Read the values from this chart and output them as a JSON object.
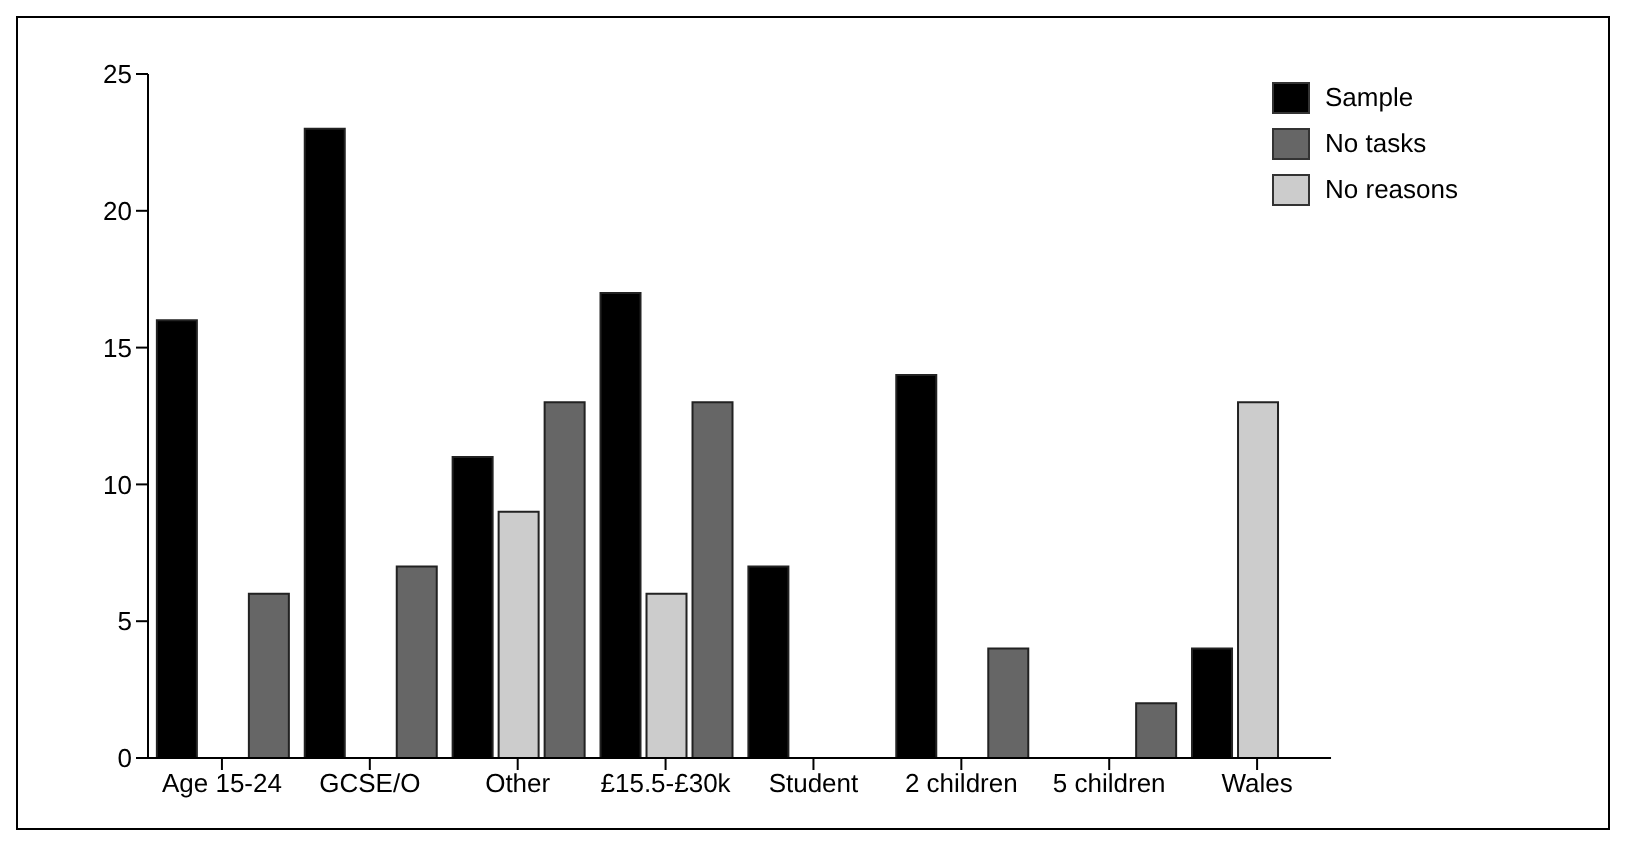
{
  "chart_data": {
    "type": "bar",
    "categories": [
      "Age 15-24",
      "GCSE/O",
      "Other",
      "£15.5-£30k",
      "Student",
      "2 children",
      "5 children",
      "Wales"
    ],
    "series": [
      {
        "name": "Sample",
        "color": "#000000",
        "values": [
          16,
          23,
          11,
          17,
          7,
          14,
          null,
          4
        ]
      },
      {
        "name": "No reasons",
        "color": "#cccccc",
        "values": [
          null,
          null,
          9,
          6,
          null,
          null,
          null,
          13
        ]
      },
      {
        "name": "No tasks",
        "color": "#666666",
        "values": [
          6,
          7,
          13,
          13,
          null,
          4,
          2,
          null
        ]
      }
    ],
    "ylim": [
      0,
      25
    ],
    "yticks": [
      0,
      5,
      10,
      15,
      20,
      25
    ],
    "grid": false,
    "legend": "top right"
  }
}
